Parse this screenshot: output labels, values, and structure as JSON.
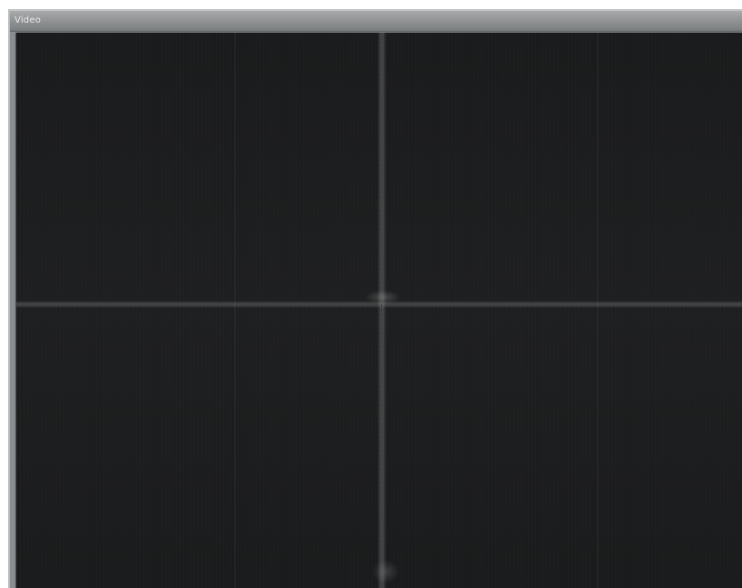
{
  "window": {
    "title": "Video"
  },
  "colors": {
    "video_background": "#1b1c1d",
    "crosshair": "#8c8c8c",
    "titlebar": "#8e9192"
  }
}
